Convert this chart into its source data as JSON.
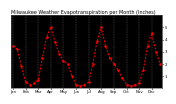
{
  "title": "Milwaukee Weather Evapotranspiration per Month (Inches)",
  "x_labels": [
    "J",
    "F",
    "J",
    "A",
    "M",
    "J",
    "J",
    "A",
    "S",
    "O",
    "N",
    "D",
    "J",
    "F",
    "J",
    "A",
    "M",
    "J",
    "J",
    "A",
    "S",
    "O",
    "N",
    "D",
    "J",
    "F",
    "J",
    "A",
    "M",
    "J",
    "J",
    "A",
    "S",
    "O",
    "N",
    "D"
  ],
  "months": [
    "Jan",
    "Feb",
    "Mar",
    "Apr",
    "May",
    "Jun",
    "Jul",
    "Aug",
    "Sep",
    "Oct",
    "Nov",
    "Dec"
  ],
  "values": [
    3.5,
    3.2,
    1.8,
    0.5,
    0.3,
    0.4,
    0.7,
    2.5,
    4.2,
    5.0,
    3.8,
    2.8,
    2.2,
    2.0,
    1.0,
    0.3,
    0.2,
    0.3,
    0.5,
    2.0,
    3.9,
    5.0,
    3.5,
    2.5,
    2.0,
    1.5,
    0.8,
    0.3,
    0.2,
    0.3,
    0.4,
    1.5,
    3.5,
    4.5,
    3.0,
    2.0
  ],
  "line_color": "#ff0000",
  "bg_color": "#1a1a1a",
  "plot_bg": "#000000",
  "ylim": [
    0.0,
    6.0
  ],
  "yticks": [
    1,
    2,
    3,
    4,
    5
  ],
  "grid_color": "#888888",
  "title_color": "#000000",
  "tick_color": "#000000",
  "title_fontsize": 3.5,
  "tick_fontsize": 2.8
}
